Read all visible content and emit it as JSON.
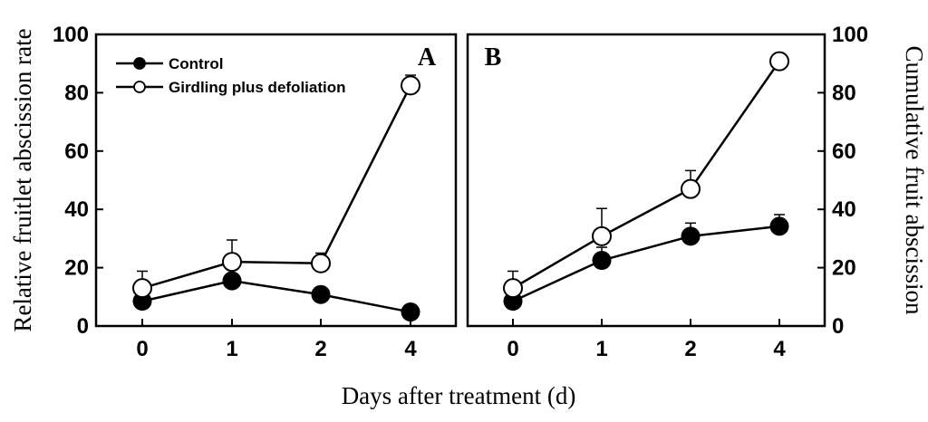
{
  "chart_data": [
    {
      "panel": "A",
      "type": "line",
      "categories": [
        "0",
        "1",
        "2",
        "4"
      ],
      "ylabel": "Relative fruitlet abscission rate",
      "ylim": [
        0,
        100
      ],
      "yticks": [
        "0",
        "20",
        "40",
        "60",
        "80",
        "100"
      ],
      "legend": "top-left",
      "grid": false,
      "series": [
        {
          "name": "Control",
          "marker": "filled-circle",
          "values": [
            8.5,
            15.5,
            10.8,
            4.8
          ],
          "errors": [
            0,
            0,
            0,
            0
          ]
        },
        {
          "name": "Girdling plus defoliation",
          "marker": "open-circle",
          "values": [
            13,
            22,
            21.5,
            82.5
          ],
          "errors": [
            5.8,
            7.5,
            3.5,
            3.5
          ]
        }
      ]
    },
    {
      "panel": "B",
      "type": "line",
      "categories": [
        "0",
        "1",
        "2",
        "4"
      ],
      "ylabel": "Cumulative fruit abscission",
      "ylim": [
        0,
        100
      ],
      "yticks": [
        "0",
        "20",
        "40",
        "60",
        "80",
        "100"
      ],
      "grid": false,
      "series": [
        {
          "name": "Control",
          "marker": "filled-circle",
          "values": [
            8.5,
            22.5,
            30.8,
            34.2
          ],
          "errors": [
            0,
            4.5,
            4.5,
            4
          ]
        },
        {
          "name": "Girdling plus defoliation",
          "marker": "open-circle",
          "values": [
            13,
            30.8,
            47,
            90.8
          ],
          "errors": [
            5.8,
            9.5,
            6.3,
            0
          ]
        }
      ]
    }
  ],
  "xlabel": "Days after treatment (d)"
}
